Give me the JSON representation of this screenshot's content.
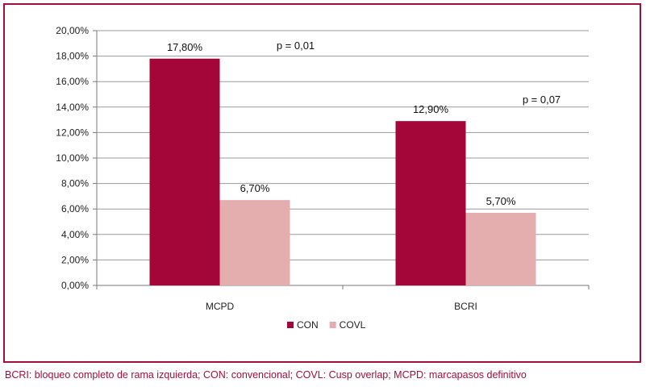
{
  "chart_data": {
    "type": "bar",
    "categories": [
      "MCPD",
      "BCRI"
    ],
    "series": [
      {
        "name": "CON",
        "values": [
          17.8,
          12.9
        ],
        "labels": [
          "17,80%",
          "12,90%"
        ],
        "color": "#a5063a"
      },
      {
        "name": "COVL",
        "values": [
          6.7,
          5.7
        ],
        "labels": [
          "6,70%",
          "5,70%"
        ],
        "color": "#e5aeae"
      }
    ],
    "p_values": [
      "p = 0,01",
      "p = 0,07"
    ],
    "ylim": [
      0,
      20
    ],
    "yticks": [
      0,
      2,
      4,
      6,
      8,
      10,
      12,
      14,
      16,
      18,
      20
    ],
    "ytick_labels": [
      "0,00%",
      "2,00%",
      "4,00%",
      "6,00%",
      "8,00%",
      "10,00%",
      "12,00%",
      "14,00%",
      "16,00%",
      "18,00%",
      "20,00%"
    ],
    "grid": true,
    "legend_position": "bottom",
    "frame_color": "#a10f3a"
  },
  "caption": "BCRI: bloqueo completo de rama izquierda; CON: convencional; COVL: Cusp overlap; MCPD: marcapasos definitivo"
}
